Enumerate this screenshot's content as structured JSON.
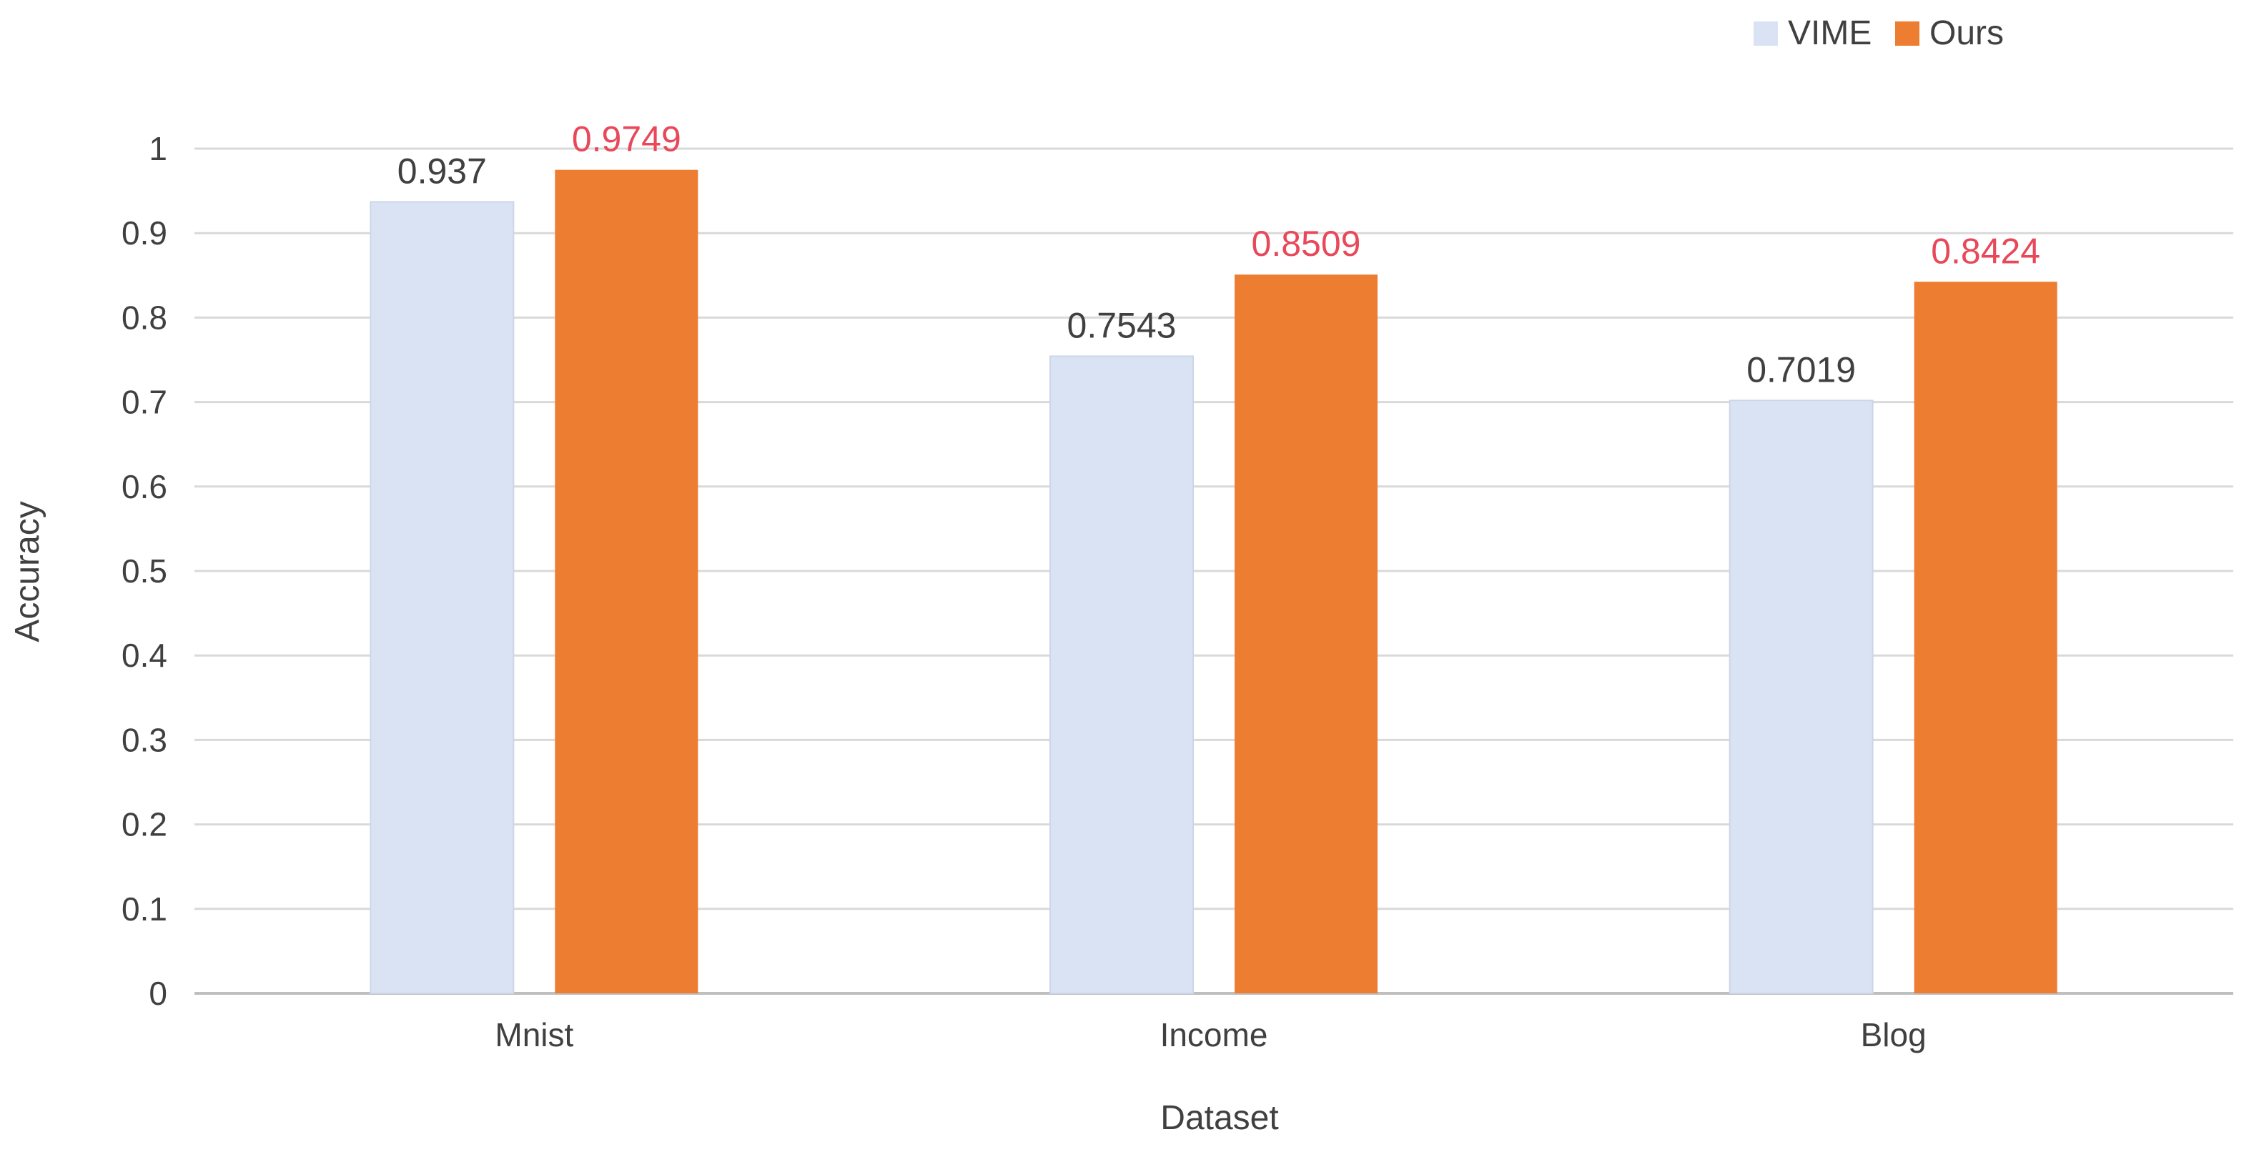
{
  "chart_data": {
    "type": "bar",
    "categories": [
      "Mnist",
      "Income",
      "Blog"
    ],
    "series": [
      {
        "name": "VIME",
        "values": [
          0.937,
          0.7543,
          0.7019
        ],
        "color": "#dae3f3",
        "label_color": "#404040"
      },
      {
        "name": "Ours",
        "values": [
          0.9749,
          0.8509,
          0.8424
        ],
        "color": "#ed7d31",
        "label_color": "#e8485a"
      }
    ],
    "data_labels": [
      [
        "0.937",
        "0.7543",
        "0.7019"
      ],
      [
        "0.9749",
        "0.8509",
        "0.8424"
      ]
    ],
    "xlabel": "Dataset",
    "ylabel": "Accuracy",
    "ylim": [
      0,
      1
    ],
    "yticks": [
      0,
      0.1,
      0.2,
      0.3,
      0.4,
      0.5,
      0.6,
      0.7,
      0.8,
      0.9,
      1
    ],
    "ytick_labels": [
      "0",
      "0.1",
      "0.2",
      "0.3",
      "0.4",
      "0.5",
      "0.6",
      "0.7",
      "0.8",
      "0.9",
      "1"
    ],
    "grid": true,
    "legend_position": "top-right",
    "gridline_color": "#d9d9d9",
    "axis_line_color": "#bfbfbf",
    "text_color": "#404040"
  }
}
